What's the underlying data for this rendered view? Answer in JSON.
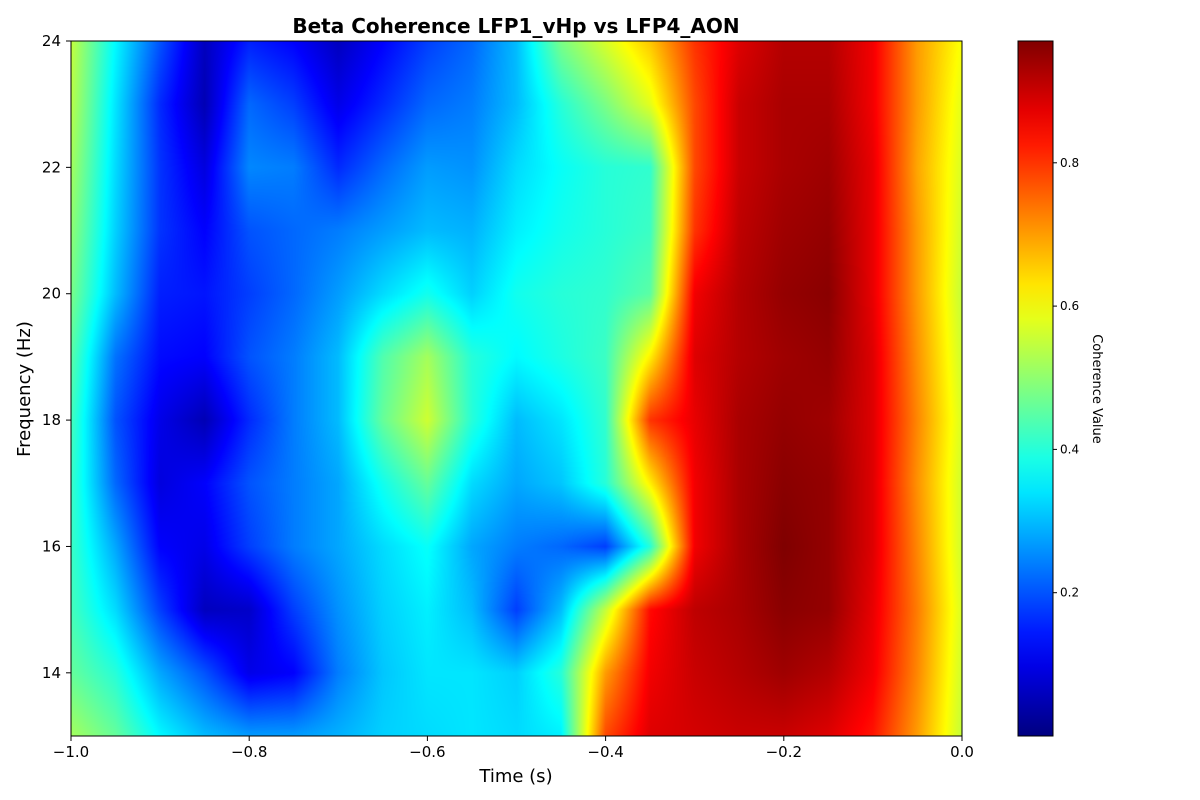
{
  "chart_data": {
    "type": "heatmap",
    "title": "Beta Coherence LFP1_vHp vs LFP4_AON",
    "xlabel": "Time (s)",
    "ylabel": "Frequency (Hz)",
    "xlim": [
      -1.0,
      0.0
    ],
    "ylim": [
      13,
      24
    ],
    "x_ticks": [
      -1.0,
      -0.8,
      -0.6,
      -0.4,
      -0.2,
      0.0
    ],
    "x_tick_labels": [
      "−1.0",
      "−0.8",
      "−0.6",
      "−0.4",
      "−0.2",
      "0.0"
    ],
    "y_ticks": [
      14,
      16,
      18,
      20,
      22,
      24
    ],
    "y_tick_labels": [
      "14",
      "16",
      "18",
      "20",
      "22",
      "24"
    ],
    "colormap": "jet",
    "colorbar": {
      "label": "Coherence Value",
      "vmin": 0.0,
      "vmax": 0.97,
      "ticks": [
        0.2,
        0.4,
        0.6,
        0.8
      ],
      "tick_labels": [
        "0.2",
        "0.4",
        "0.6",
        "0.8"
      ]
    },
    "grid": false,
    "x": [
      -1.0,
      -0.95,
      -0.9,
      -0.85,
      -0.8,
      -0.75,
      -0.7,
      -0.65,
      -0.6,
      -0.55,
      -0.5,
      -0.45,
      -0.4,
      -0.35,
      -0.3,
      -0.25,
      -0.2,
      -0.15,
      -0.1,
      -0.05,
      0.0
    ],
    "y": [
      13,
      14,
      15,
      16,
      17,
      18,
      19,
      20,
      21,
      22,
      23,
      24
    ],
    "z": [
      [
        0.52,
        0.46,
        0.36,
        0.3,
        0.27,
        0.27,
        0.29,
        0.32,
        0.33,
        0.34,
        0.33,
        0.35,
        0.78,
        0.88,
        0.89,
        0.9,
        0.9,
        0.88,
        0.83,
        0.7,
        0.55
      ],
      [
        0.46,
        0.4,
        0.28,
        0.2,
        0.1,
        0.12,
        0.24,
        0.31,
        0.34,
        0.34,
        0.32,
        0.4,
        0.7,
        0.86,
        0.9,
        0.92,
        0.94,
        0.92,
        0.86,
        0.72,
        0.56
      ],
      [
        0.43,
        0.33,
        0.18,
        0.06,
        0.07,
        0.18,
        0.26,
        0.32,
        0.35,
        0.3,
        0.18,
        0.3,
        0.55,
        0.84,
        0.91,
        0.93,
        0.96,
        0.95,
        0.87,
        0.73,
        0.57
      ],
      [
        0.42,
        0.28,
        0.12,
        0.1,
        0.18,
        0.24,
        0.28,
        0.33,
        0.37,
        0.28,
        0.24,
        0.22,
        0.18,
        0.4,
        0.86,
        0.93,
        0.97,
        0.95,
        0.88,
        0.72,
        0.56
      ],
      [
        0.42,
        0.22,
        0.09,
        0.12,
        0.2,
        0.24,
        0.28,
        0.38,
        0.46,
        0.33,
        0.28,
        0.31,
        0.4,
        0.62,
        0.86,
        0.93,
        0.96,
        0.95,
        0.88,
        0.71,
        0.56
      ],
      [
        0.43,
        0.2,
        0.1,
        0.05,
        0.16,
        0.24,
        0.3,
        0.46,
        0.56,
        0.4,
        0.3,
        0.34,
        0.41,
        0.8,
        0.87,
        0.93,
        0.95,
        0.94,
        0.88,
        0.72,
        0.57
      ],
      [
        0.45,
        0.23,
        0.13,
        0.12,
        0.2,
        0.24,
        0.3,
        0.44,
        0.52,
        0.4,
        0.36,
        0.39,
        0.42,
        0.62,
        0.88,
        0.92,
        0.94,
        0.95,
        0.88,
        0.71,
        0.56
      ],
      [
        0.48,
        0.3,
        0.15,
        0.14,
        0.18,
        0.22,
        0.27,
        0.33,
        0.38,
        0.32,
        0.38,
        0.4,
        0.41,
        0.45,
        0.86,
        0.92,
        0.95,
        0.96,
        0.87,
        0.7,
        0.55
      ],
      [
        0.5,
        0.32,
        0.17,
        0.12,
        0.2,
        0.22,
        0.24,
        0.27,
        0.3,
        0.29,
        0.35,
        0.38,
        0.4,
        0.42,
        0.8,
        0.91,
        0.94,
        0.95,
        0.87,
        0.7,
        0.56
      ],
      [
        0.52,
        0.33,
        0.17,
        0.09,
        0.25,
        0.24,
        0.16,
        0.22,
        0.27,
        0.26,
        0.33,
        0.37,
        0.4,
        0.41,
        0.78,
        0.9,
        0.93,
        0.94,
        0.87,
        0.69,
        0.57
      ],
      [
        0.54,
        0.34,
        0.16,
        0.05,
        0.22,
        0.18,
        0.1,
        0.16,
        0.22,
        0.24,
        0.3,
        0.4,
        0.48,
        0.58,
        0.78,
        0.9,
        0.93,
        0.93,
        0.86,
        0.7,
        0.58
      ],
      [
        0.55,
        0.36,
        0.2,
        0.06,
        0.15,
        0.12,
        0.06,
        0.12,
        0.18,
        0.22,
        0.3,
        0.48,
        0.57,
        0.66,
        0.8,
        0.88,
        0.92,
        0.92,
        0.86,
        0.7,
        0.6
      ]
    ]
  }
}
